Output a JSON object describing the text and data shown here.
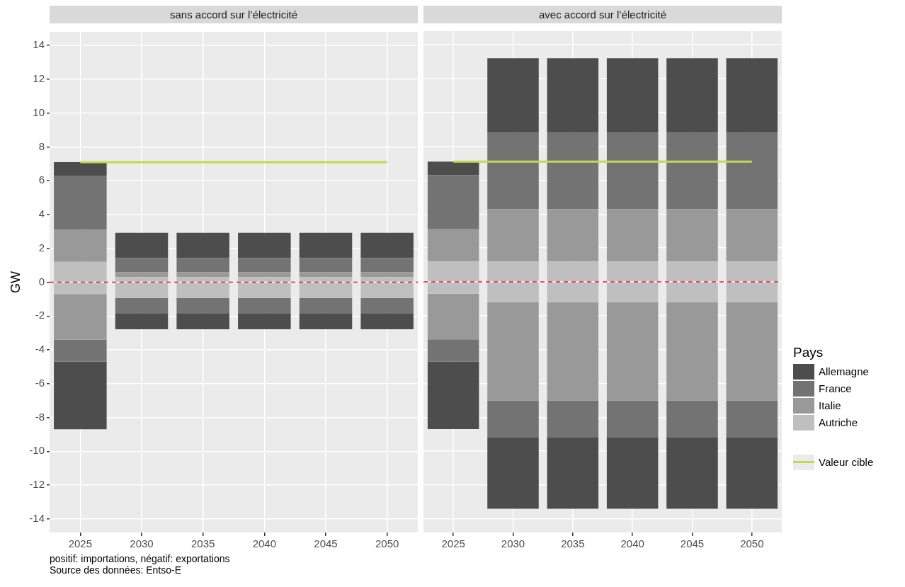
{
  "chart_data": [
    {
      "type": "bar",
      "title": "sans accord sur l’électricité",
      "ylabel": "GW",
      "categories": [
        "2025",
        "2030",
        "2035",
        "2040",
        "2045",
        "2050"
      ],
      "stacked": true,
      "ylim": [
        -14.8,
        14.8
      ],
      "yticks": [
        -14,
        -12,
        -10,
        -8,
        -6,
        -4,
        -2,
        0,
        2,
        4,
        6,
        8,
        10,
        12,
        14
      ],
      "grid": true,
      "legend": "right",
      "legend_title": "Pays",
      "series": [
        {
          "name": "Autriche",
          "color": "#bfbfbf",
          "values": [
            1.2,
            0.3,
            0.3,
            0.3,
            0.3,
            0.3
          ]
        },
        {
          "name": "Italie",
          "color": "#999999",
          "values": [
            1.9,
            0.29,
            0.29,
            0.29,
            0.29,
            0.29
          ]
        },
        {
          "name": "France",
          "color": "#737373",
          "values": [
            3.2,
            0.84,
            0.84,
            0.84,
            0.84,
            0.84
          ]
        },
        {
          "name": "Allemagne",
          "color": "#4d4d4d",
          "values": [
            0.8,
            1.49,
            1.49,
            1.49,
            1.49,
            1.49
          ]
        },
        {
          "color": "#bfbfbf",
          "values": [
            -0.7,
            -0.93,
            -0.93,
            -0.93,
            -0.93,
            -0.93
          ]
        },
        {
          "color": "#999999",
          "values": [
            -2.7,
            0,
            0,
            0,
            0,
            0
          ]
        },
        {
          "color": "#737373",
          "values": [
            -1.3,
            -0.9,
            -0.9,
            -0.9,
            -0.9,
            -0.9
          ]
        },
        {
          "color": "#4d4d4d",
          "values": [
            -4.0,
            -0.95,
            -0.95,
            -0.95,
            -0.95,
            -0.95
          ]
        },
        {
          "type": "line",
          "name": "Valeur cible",
          "color": "#c5d850",
          "marker": "none",
          "values": [
            7.1,
            7.1,
            7.1,
            7.1,
            7.1,
            7.1
          ]
        }
      ],
      "ref_lines": [
        {
          "axis": "y",
          "value": 0,
          "color": "#e0103a",
          "line_style": "dashed"
        }
      ],
      "annotations": [
        "positif: importations, négatif: exportations",
        "Source des données: Entso-E"
      ]
    },
    {
      "type": "bar",
      "title": "avec accord sur l’électricité",
      "categories": [
        "2025",
        "2030",
        "2035",
        "2040",
        "2045",
        "2050"
      ],
      "stacked": true,
      "ylim": [
        -14.8,
        14.8
      ],
      "yticks": [
        -14,
        -12,
        -10,
        -8,
        -6,
        -4,
        -2,
        0,
        2,
        4,
        6,
        8,
        10,
        12,
        14
      ],
      "grid": true,
      "tick_labels": "x",
      "legend": "right",
      "series": [
        {
          "name": "Autriche",
          "color": "#bfbfbf",
          "values": [
            1.2,
            1.2,
            1.2,
            1.2,
            1.2,
            1.2
          ]
        },
        {
          "name": "Italie",
          "color": "#999999",
          "values": [
            1.9,
            3.1,
            3.1,
            3.1,
            3.1,
            3.1
          ]
        },
        {
          "name": "France",
          "color": "#737373",
          "values": [
            3.2,
            4.5,
            4.5,
            4.5,
            4.5,
            4.5
          ]
        },
        {
          "name": "Allemagne",
          "color": "#4d4d4d",
          "values": [
            0.8,
            4.4,
            4.4,
            4.4,
            4.4,
            4.4
          ]
        },
        {
          "color": "#bfbfbf",
          "values": [
            -0.7,
            -1.2,
            -1.2,
            -1.2,
            -1.2,
            -1.2
          ]
        },
        {
          "color": "#999999",
          "values": [
            -2.7,
            -5.8,
            -5.8,
            -5.8,
            -5.8,
            -5.8
          ]
        },
        {
          "color": "#737373",
          "values": [
            -1.3,
            -2.2,
            -2.2,
            -2.2,
            -2.2,
            -2.2
          ]
        },
        {
          "color": "#4d4d4d",
          "values": [
            -4.0,
            -4.2,
            -4.2,
            -4.2,
            -4.2,
            -4.2
          ]
        },
        {
          "type": "line",
          "name": "Valeur cible",
          "color": "#c5d850",
          "marker": "none",
          "values": [
            7.1,
            7.1,
            7.1,
            7.1,
            7.1,
            7.1
          ]
        }
      ],
      "ref_lines": [
        {
          "axis": "y",
          "value": 0,
          "color": "#e0103a",
          "line_style": "dashed"
        }
      ]
    }
  ]
}
